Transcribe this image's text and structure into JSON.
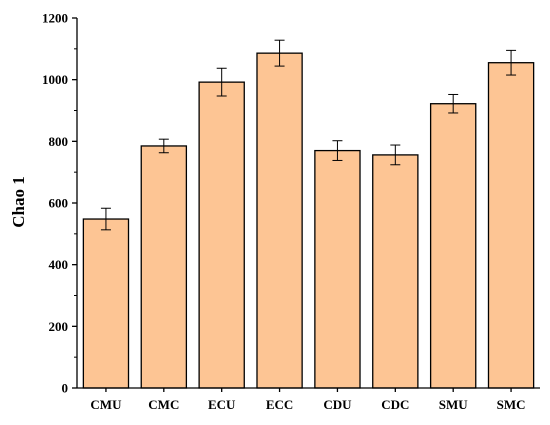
{
  "chart_data": {
    "type": "bar",
    "title": "",
    "xlabel": "",
    "ylabel": "Chao 1",
    "ylim": [
      0,
      1200
    ],
    "yticks": [
      0,
      200,
      400,
      600,
      800,
      1000,
      1200
    ],
    "categories": [
      "CMU",
      "CMC",
      "ECU",
      "ECC",
      "CDU",
      "CDC",
      "SMU",
      "SMC"
    ],
    "values": [
      548,
      785,
      992,
      1086,
      770,
      756,
      922,
      1055
    ],
    "errors": [
      35,
      22,
      45,
      42,
      32,
      32,
      30,
      40
    ],
    "bar_color": "#FDC594",
    "edge_color": "#000000",
    "grid": false,
    "legend": "none"
  }
}
